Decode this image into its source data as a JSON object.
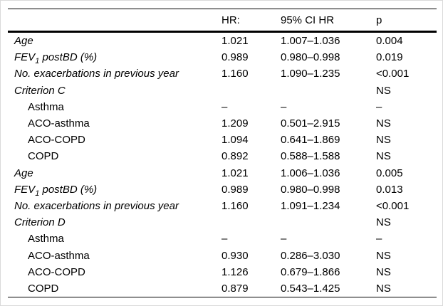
{
  "colors": {
    "background": "#ffffff",
    "text": "#000000",
    "rule": "#000000",
    "frame": "#d9d9d9"
  },
  "table": {
    "columns": [
      {
        "label": ""
      },
      {
        "label": "HR:"
      },
      {
        "label": "95% CI HR"
      },
      {
        "label": "p"
      }
    ],
    "rows": [
      {
        "label": "Age",
        "italic": true,
        "indent": false,
        "hr": "1.021",
        "ci": "1.007–1.036",
        "p": "0.004"
      },
      {
        "label_pre": "FEV",
        "label_sub": "1",
        "label_post": " postBD (%)",
        "italic": true,
        "indent": false,
        "hr": "0.989",
        "ci": "0.980–0.998",
        "p": "0.019"
      },
      {
        "label": "No. exacerbations in previous year",
        "italic": true,
        "indent": false,
        "hr": "1.160",
        "ci": "1.090–1.235",
        "p": "<0.001"
      },
      {
        "label": "Criterion C",
        "italic": true,
        "indent": false,
        "hr": "",
        "ci": "",
        "p": "NS"
      },
      {
        "label": "Asthma",
        "italic": false,
        "indent": true,
        "hr": "–",
        "ci": "–",
        "p": "–"
      },
      {
        "label": "ACO-asthma",
        "italic": false,
        "indent": true,
        "hr": "1.209",
        "ci": "0.501–2.915",
        "p": "NS"
      },
      {
        "label": "ACO-COPD",
        "italic": false,
        "indent": true,
        "hr": "1.094",
        "ci": "0.641–1.869",
        "p": "NS"
      },
      {
        "label": "COPD",
        "italic": false,
        "indent": true,
        "hr": "0.892",
        "ci": "0.588–1.588",
        "p": "NS"
      },
      {
        "label": "Age",
        "italic": true,
        "indent": false,
        "hr": "1.021",
        "ci": "1.006–1.036",
        "p": "0.005"
      },
      {
        "label_pre": "FEV",
        "label_sub": "1",
        "label_post": " postBD (%)",
        "italic": true,
        "indent": false,
        "hr": "0.989",
        "ci": "0.980–0.998",
        "p": "0.013"
      },
      {
        "label": "No. exacerbations in previous year",
        "italic": true,
        "indent": false,
        "hr": "1.160",
        "ci": "1.091–1.234",
        "p": "<0.001"
      },
      {
        "label": "Criterion D",
        "italic": true,
        "indent": false,
        "hr": "",
        "ci": "",
        "p": "NS"
      },
      {
        "label": "Asthma",
        "italic": false,
        "indent": true,
        "hr": "–",
        "ci": "–",
        "p": "–"
      },
      {
        "label": "ACO-asthma",
        "italic": false,
        "indent": true,
        "hr": "0.930",
        "ci": "0.286–3.030",
        "p": "NS"
      },
      {
        "label": "ACO-COPD",
        "italic": false,
        "indent": true,
        "hr": "1.126",
        "ci": "0.679–1.866",
        "p": "NS"
      },
      {
        "label": "COPD",
        "italic": false,
        "indent": true,
        "hr": "0.879",
        "ci": "0.543–1.425",
        "p": "NS"
      }
    ]
  }
}
